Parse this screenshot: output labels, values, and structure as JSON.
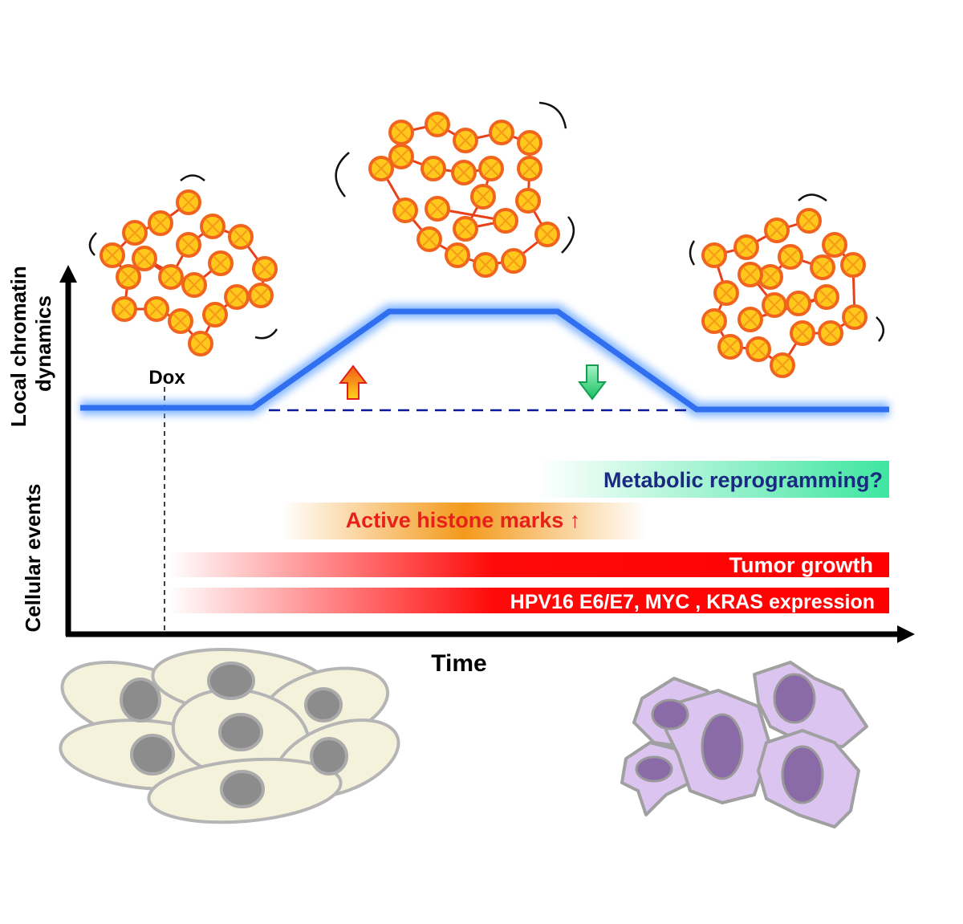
{
  "axes": {
    "y_label_top": [
      "Local chromatin",
      "dynamics"
    ],
    "y_label_bottom": "Cellular events",
    "x_label": "Time"
  },
  "marker": "Dox",
  "events": [
    "Metabolic reprogramming?",
    "Active histone marks ↑",
    "Tumor growth",
    "HPV16 E6/E7, MYC , KRAS  expression"
  ]
}
